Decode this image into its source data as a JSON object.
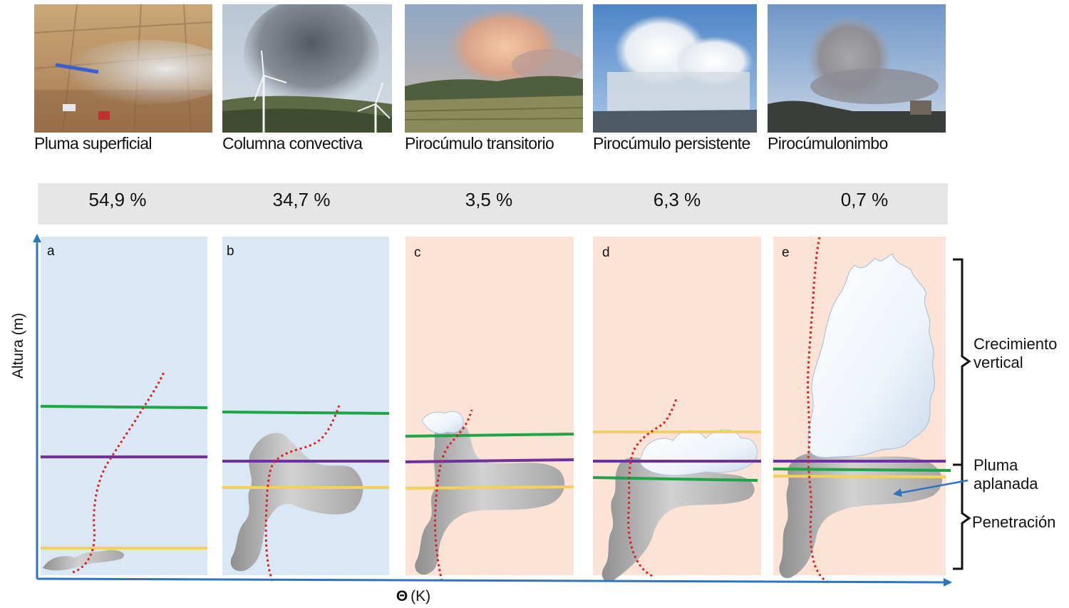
{
  "photos": [
    {
      "caption": "Pluma superficial",
      "percent": "54,9 %"
    },
    {
      "caption": "Columna convectiva",
      "percent": "34,7 %"
    },
    {
      "caption": "Pirocúmulo transitorio",
      "percent": "3,5 %"
    },
    {
      "caption": "Pirocúmulo persistente",
      "percent": "6,3 %"
    },
    {
      "caption": "Pirocúmulonimbo",
      "percent": "0,7 %"
    }
  ],
  "panels": [
    {
      "letter": "a",
      "background": "#d9e8f4"
    },
    {
      "letter": "b",
      "background": "#d9e8f4"
    },
    {
      "letter": "c",
      "background": "#fde3d6"
    },
    {
      "letter": "d",
      "background": "#fde3d6"
    },
    {
      "letter": "e",
      "background": "#fde3d6"
    }
  ],
  "axes": {
    "y_label": "Altura (m)",
    "x_symbol": "Θ",
    "x_unit": "(K)"
  },
  "brackets": {
    "top": [
      "Crecimiento",
      "vertical"
    ],
    "middle": [
      "Pluma",
      "aplanada"
    ],
    "bottom": "Penetración"
  },
  "colors": {
    "green": "#1fa447",
    "purple": "#7030a0",
    "yellow": "#f5d15b",
    "profile": "#e02020",
    "axis": "#2e75c0"
  }
}
